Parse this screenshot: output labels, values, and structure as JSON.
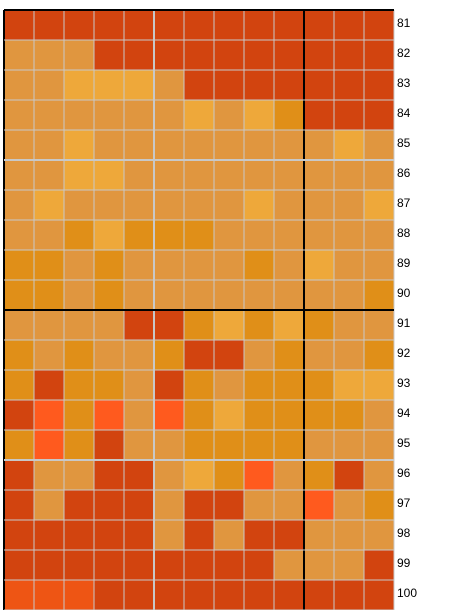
{
  "rows": [
    {
      "label": "81"
    },
    {
      "label": "82"
    },
    {
      "label": "83"
    },
    {
      "label": "84"
    },
    {
      "label": "85"
    },
    {
      "label": "86"
    },
    {
      "label": "87"
    },
    {
      "label": "88"
    },
    {
      "label": "89"
    },
    {
      "label": "90"
    },
    {
      "label": "91"
    },
    {
      "label": "92"
    },
    {
      "label": "93"
    },
    {
      "label": "94"
    },
    {
      "label": "95"
    },
    {
      "label": "96"
    },
    {
      "label": "97"
    },
    {
      "label": "98"
    },
    {
      "label": "99"
    },
    {
      "label": "100"
    }
  ]
}
